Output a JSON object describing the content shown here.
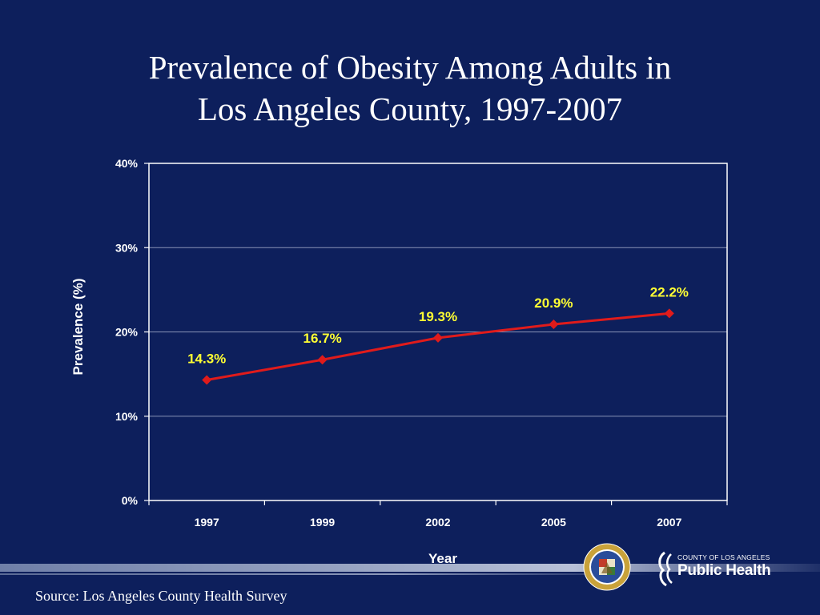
{
  "slide": {
    "title_line1": "Prevalence of Obesity Among Adults in",
    "title_line2": "Los Angeles County, 1997-2007",
    "source": "Source: Los Angeles County Health Survey",
    "logo_small": "County of Los Angeles",
    "logo_big": "Public Health",
    "seal_text": "COUNTY OF LOS ANGELES · CALIFORNIA"
  },
  "colors": {
    "background": "#0d1f5c",
    "series_line": "#e01b1b",
    "data_label": "#ffff33",
    "gridline": "#8a93b8"
  },
  "chart_data": {
    "type": "line",
    "title": "",
    "xlabel": "Year",
    "ylabel": "Prevalence (%)",
    "categories": [
      "1997",
      "1999",
      "2002",
      "2005",
      "2007"
    ],
    "series": [
      {
        "values": [
          14.3,
          16.7,
          19.3,
          20.9,
          22.2
        ]
      }
    ],
    "data_labels": [
      "14.3%",
      "16.7%",
      "19.3%",
      "20.9%",
      "22.2%"
    ],
    "ylim": [
      0,
      40
    ],
    "yticks": [
      0,
      10,
      20,
      30,
      40
    ],
    "ytick_labels": [
      "0%",
      "10%",
      "20%",
      "30%",
      "40%"
    ],
    "grid": true,
    "legend": "none"
  }
}
